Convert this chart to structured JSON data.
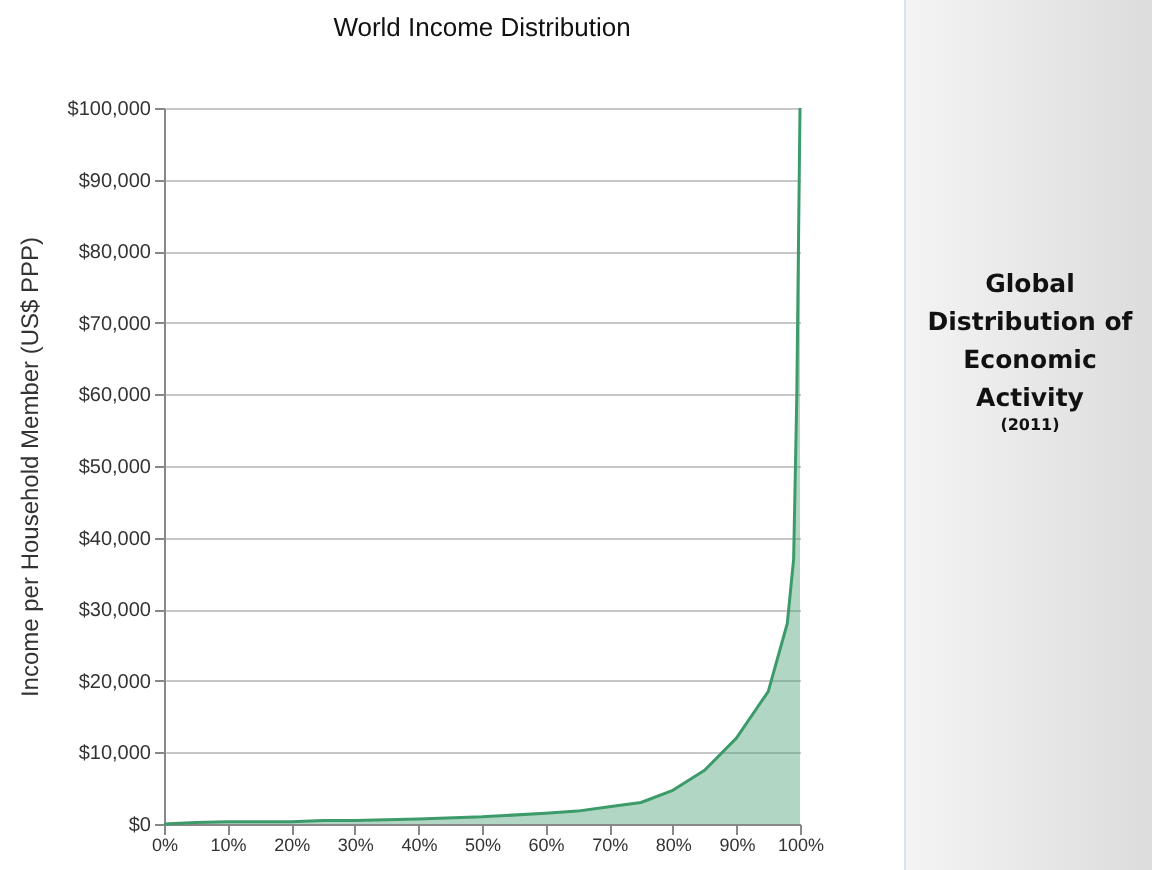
{
  "chart_data": {
    "type": "area",
    "title": "World Income Distribution",
    "ylabel": "Income per Household Member  (US$ PPP)",
    "x": [
      0,
      5,
      10,
      20,
      25,
      30,
      40,
      50,
      60,
      65,
      70,
      75,
      80,
      85,
      90,
      95,
      98,
      99,
      99.5,
      100
    ],
    "series": [
      {
        "color": "#3d9b6b",
        "values": [
          0,
          200,
          300,
          300,
          500,
          500,
          700,
          1000,
          1500,
          1800,
          2400,
          3000,
          4700,
          7500,
          12000,
          18500,
          28000,
          37000,
          60000,
          100000
        ]
      }
    ],
    "xlim": [
      0,
      100
    ],
    "xticks": [
      {
        "value": 0,
        "label": "0%"
      },
      {
        "value": 10,
        "label": "10%"
      },
      {
        "value": 20,
        "label": "20%"
      },
      {
        "value": 30,
        "label": "30%"
      },
      {
        "value": 40,
        "label": "40%"
      },
      {
        "value": 50,
        "label": "50%"
      },
      {
        "value": 60,
        "label": "60%"
      },
      {
        "value": 70,
        "label": "70%"
      },
      {
        "value": 80,
        "label": "80%"
      },
      {
        "value": 90,
        "label": "90%"
      },
      {
        "value": 100,
        "label": "100%"
      }
    ],
    "ylim": [
      0,
      100000
    ],
    "yticks": [
      {
        "value": 0,
        "label": "$0"
      },
      {
        "value": 10000,
        "label": "$10,000"
      },
      {
        "value": 20000,
        "label": "$20,000"
      },
      {
        "value": 30000,
        "label": "$30,000"
      },
      {
        "value": 40000,
        "label": "$40,000"
      },
      {
        "value": 50000,
        "label": "$50,000"
      },
      {
        "value": 60000,
        "label": "$60,000"
      },
      {
        "value": 70000,
        "label": "$70,000"
      },
      {
        "value": 80000,
        "label": "$80,000"
      },
      {
        "value": 90000,
        "label": "$90,000"
      },
      {
        "value": 100000,
        "label": "$100,000"
      }
    ],
    "grid": "y",
    "annotations": [
      "Global Distribution of Economic Activity",
      "(2011)"
    ]
  }
}
